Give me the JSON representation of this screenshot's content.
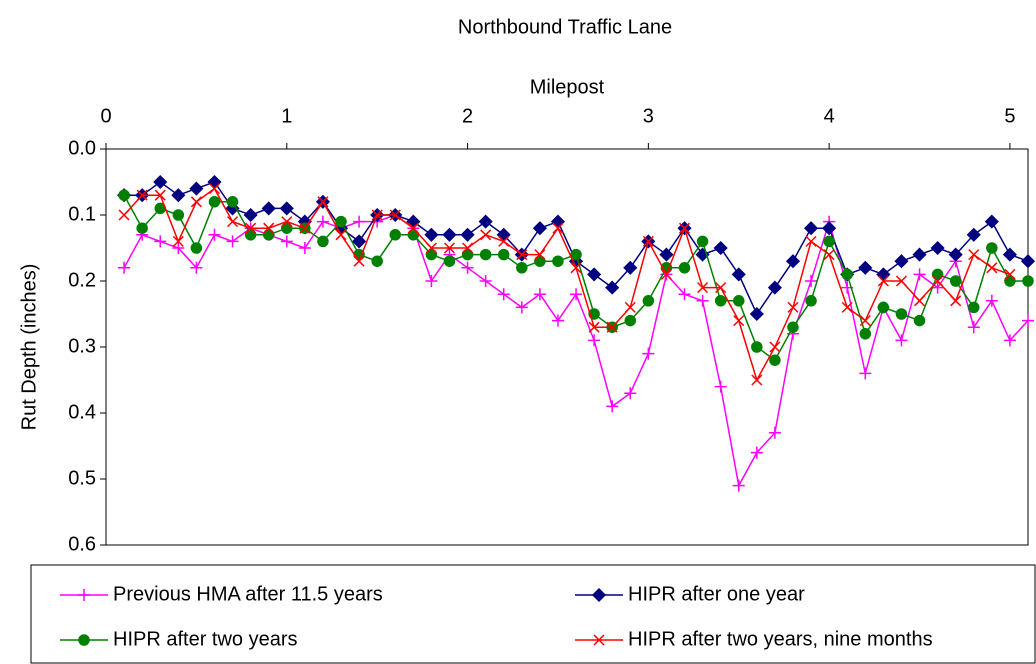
{
  "chart_data": {
    "type": "line",
    "title": "Northbound Traffic Lane",
    "x_label": "Milepost",
    "y_label": "Rut Depth (inches)",
    "x_axis_position": "top",
    "y_reversed": true,
    "xlim": [
      0,
      5.1
    ],
    "ylim": [
      0,
      0.6
    ],
    "xticks": [
      0,
      1,
      2,
      3,
      4,
      5
    ],
    "yticks": [
      {
        "value": 0,
        "label": "0.0"
      },
      0.1,
      0.2,
      0.3,
      0.4,
      0.5,
      0.6
    ],
    "legend_position": "bottom",
    "x": [
      0.1,
      0.2,
      0.3,
      0.4,
      0.5,
      0.6,
      0.7,
      0.8,
      0.9,
      1.0,
      1.1,
      1.2,
      1.3,
      1.4,
      1.5,
      1.6,
      1.7,
      1.8,
      1.9,
      2.0,
      2.1,
      2.2,
      2.3,
      2.4,
      2.5,
      2.6,
      2.7,
      2.8,
      2.9,
      3.0,
      3.1,
      3.2,
      3.3,
      3.4,
      3.5,
      3.6,
      3.7,
      3.8,
      3.9,
      4.0,
      4.1,
      4.2,
      4.3,
      4.4,
      4.5,
      4.6,
      4.7,
      4.8,
      4.9,
      5.0,
      5.1
    ],
    "series": [
      {
        "name": "Previous HMA after 11.5 years",
        "color": "#ff00ff",
        "marker": "plus",
        "values": [
          0.18,
          0.13,
          0.14,
          0.15,
          0.18,
          0.13,
          0.14,
          0.12,
          0.13,
          0.14,
          0.15,
          0.11,
          0.12,
          0.11,
          0.11,
          0.1,
          0.12,
          0.2,
          0.16,
          0.18,
          0.2,
          0.22,
          0.24,
          0.22,
          0.26,
          0.22,
          0.29,
          0.39,
          0.37,
          0.31,
          0.19,
          0.22,
          0.23,
          0.36,
          0.51,
          0.46,
          0.43,
          0.28,
          0.2,
          0.11,
          0.21,
          0.34,
          0.24,
          0.29,
          0.19,
          0.21,
          0.17,
          0.27,
          0.23,
          0.29,
          0.26
        ]
      },
      {
        "name": "HIPR after one year",
        "color": "#000080",
        "marker": "diamond",
        "values": [
          0.07,
          0.07,
          0.05,
          0.07,
          0.06,
          0.05,
          0.09,
          0.1,
          0.09,
          0.09,
          0.11,
          0.08,
          0.12,
          0.14,
          0.1,
          0.1,
          0.11,
          0.13,
          0.13,
          0.13,
          0.11,
          0.13,
          0.16,
          0.12,
          0.11,
          0.17,
          0.19,
          0.21,
          0.18,
          0.14,
          0.16,
          0.12,
          0.16,
          0.15,
          0.19,
          0.25,
          0.21,
          0.17,
          0.12,
          0.12,
          0.19,
          0.18,
          0.19,
          0.17,
          0.16,
          0.15,
          0.16,
          0.13,
          0.11,
          0.16,
          0.17
        ]
      },
      {
        "name": "HIPR after two years",
        "color": "#008000",
        "marker": "circle",
        "values": [
          0.07,
          0.12,
          0.09,
          0.1,
          0.15,
          0.08,
          0.08,
          0.13,
          0.13,
          0.12,
          0.12,
          0.14,
          0.11,
          0.16,
          0.17,
          0.13,
          0.13,
          0.16,
          0.17,
          0.16,
          0.16,
          0.16,
          0.18,
          0.17,
          0.17,
          0.16,
          0.25,
          0.27,
          0.26,
          0.23,
          0.18,
          0.18,
          0.14,
          0.23,
          0.23,
          0.3,
          0.32,
          0.27,
          0.23,
          0.14,
          0.19,
          0.28,
          0.24,
          0.25,
          0.26,
          0.19,
          0.2,
          0.24,
          0.15,
          0.2,
          0.2
        ]
      },
      {
        "name": "HIPR after two years, nine months",
        "color": "#ff0000",
        "marker": "x",
        "values": [
          0.1,
          0.07,
          0.07,
          0.14,
          0.08,
          0.06,
          0.11,
          0.12,
          0.12,
          0.11,
          0.12,
          0.08,
          0.13,
          0.17,
          0.1,
          0.1,
          0.12,
          0.15,
          0.15,
          0.15,
          0.13,
          0.14,
          0.16,
          0.16,
          0.12,
          0.18,
          0.27,
          0.27,
          0.24,
          0.14,
          0.19,
          0.12,
          0.21,
          0.21,
          0.26,
          0.35,
          0.3,
          0.24,
          0.14,
          0.16,
          0.24,
          0.26,
          0.2,
          0.2,
          0.23,
          0.2,
          0.23,
          0.16,
          0.18,
          0.19,
          null
        ]
      }
    ]
  }
}
